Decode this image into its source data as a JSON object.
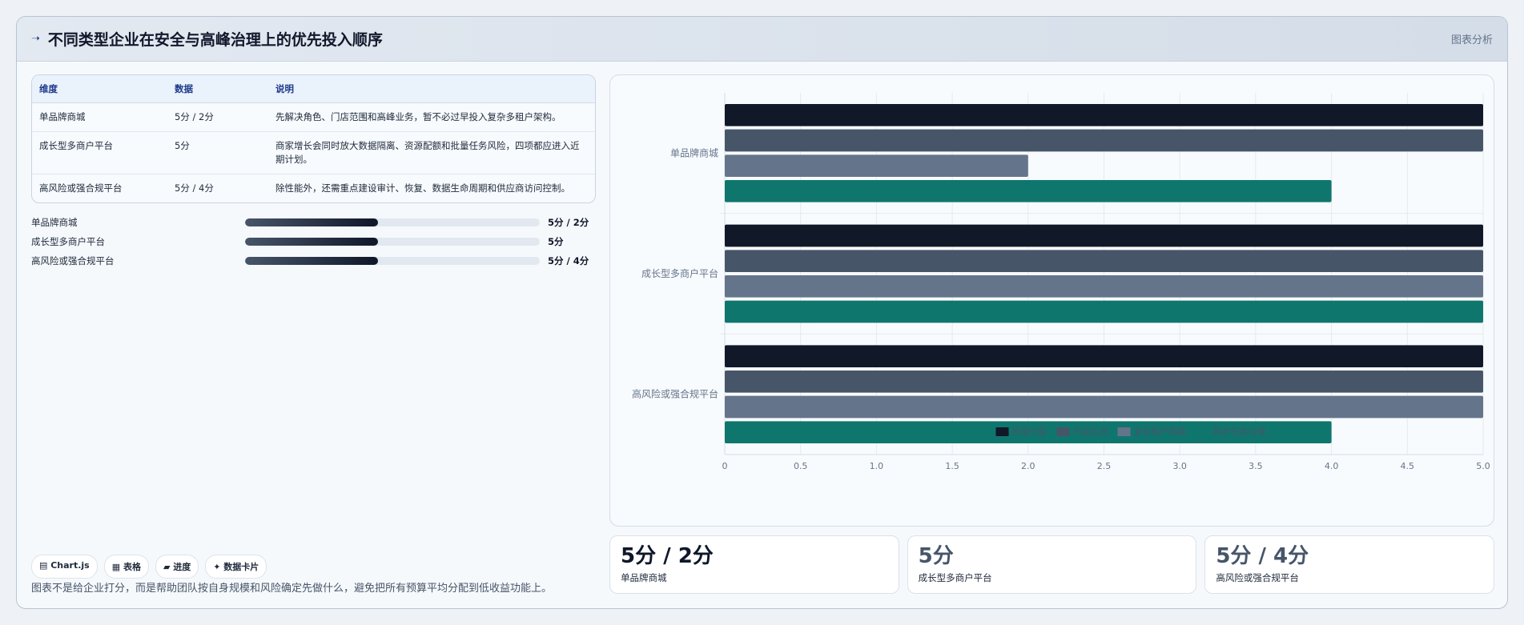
{
  "header": {
    "title_icon": "➝",
    "title": "不同类型企业在安全与高峰治理上的优先投入顺序",
    "action": "图表分析"
  },
  "table": {
    "headers": [
      "维度",
      "数据",
      "说明"
    ],
    "rows": [
      [
        "单品牌商城",
        "5分 / 2分",
        "先解决角色、门店范围和高峰业务，暂不必过早投入复杂多租户架构。"
      ],
      [
        "成长型多商户平台",
        "5分",
        "商家增长会同时放大数据隔离、资源配额和批量任务风险，四项都应进入近期计划。"
      ],
      [
        "高风险或强合规平台",
        "5分 / 4分",
        "除性能外，还需重点建设审计、恢复、数据生命周期和供应商访问控制。"
      ]
    ]
  },
  "progress": [
    {
      "label": "单品牌商城",
      "value": "5分 / 2分",
      "fraction": 0.45
    },
    {
      "label": "成长型多商户平台",
      "value": "5分",
      "fraction": 0.45
    },
    {
      "label": "高风险或强合规平台",
      "value": "5分 / 4分",
      "fraction": 0.45
    }
  ],
  "chips": [
    "▤ Chart.js",
    "▦ 表格",
    "▰ 进度",
    "✦ 数据卡片"
  ],
  "footnote": "图表不是给企业打分，而是帮助团队按自身规模和风险确定先做什么，避免把所有预算平均分配到低收益功能上。",
  "kpis": [
    {
      "value": "5分 / 2分",
      "label": "单品牌商城"
    },
    {
      "value": "5分",
      "label": "成长型多商户平台"
    },
    {
      "value": "5分 / 4分",
      "label": "高风险或强合规平台"
    }
  ],
  "chart_data": {
    "type": "bar",
    "orientation": "horizontal",
    "categories": [
      "单品牌商城",
      "成长型多商户平台",
      "高风险或强合规平台"
    ],
    "series": [
      {
        "name": "权限分层",
        "values": [
          5,
          5,
          5
        ],
        "color": "#111827"
      },
      {
        "name": "大促压测",
        "values": [
          5,
          5,
          5
        ],
        "color": "#475569"
      },
      {
        "name": "复杂租户隔离",
        "values": [
          2,
          5,
          5
        ],
        "color": "#64748b"
      },
      {
        "name": "异步任务治理",
        "values": [
          4,
          5,
          4
        ],
        "color": "#0f766e"
      }
    ],
    "xlim": [
      0,
      5
    ],
    "xticks": [
      "0",
      "0.5",
      "1.0",
      "1.5",
      "2.0",
      "2.5",
      "3.0",
      "3.5",
      "4.0",
      "4.5",
      "5.0"
    ],
    "grid": true,
    "legend": "bottom"
  }
}
